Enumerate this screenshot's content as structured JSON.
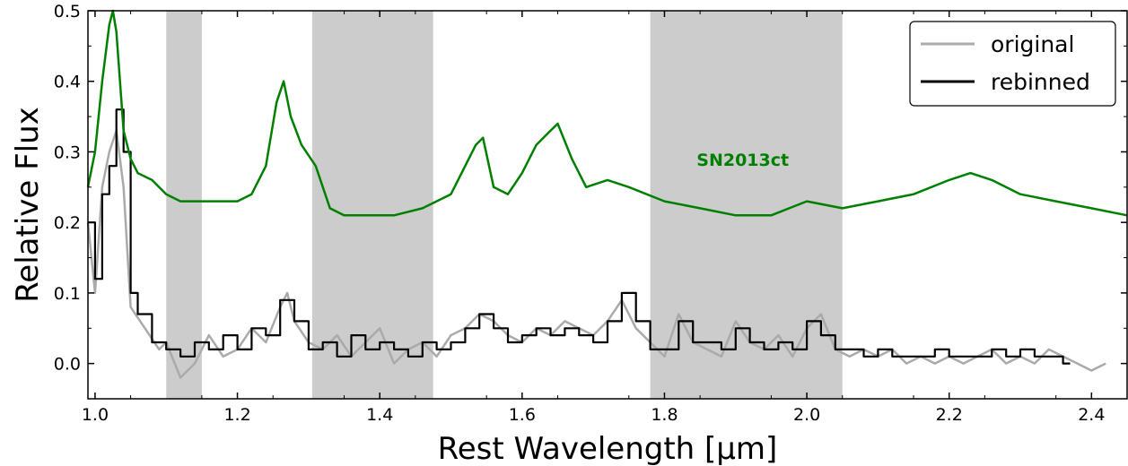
{
  "chart_data": {
    "type": "line",
    "xlabel": "Rest Wavelength [μm]",
    "ylabel": "Relative Flux",
    "xlim": [
      0.99,
      2.45
    ],
    "ylim": [
      -0.05,
      0.5
    ],
    "x_ticks": [
      1.0,
      1.2,
      1.4,
      1.6,
      1.8,
      2.0,
      2.2,
      2.4
    ],
    "y_ticks": [
      0.0,
      0.1,
      0.2,
      0.3,
      0.4,
      0.5
    ],
    "x_tick_labels": [
      "1.0",
      "1.2",
      "1.4",
      "1.6",
      "1.8",
      "2.0",
      "2.2",
      "2.4"
    ],
    "y_tick_labels": [
      "0.0",
      "0.1",
      "0.2",
      "0.3",
      "0.4",
      "0.5"
    ],
    "grid": false,
    "shaded_regions": [
      [
        1.1,
        1.15
      ],
      [
        1.305,
        1.475
      ],
      [
        1.78,
        2.05
      ]
    ],
    "legend": {
      "position": "top-right",
      "entries": [
        {
          "label": "original",
          "color": "#aaaaaa"
        },
        {
          "label": "rebinned",
          "color": "#000000"
        }
      ]
    },
    "annotations": [
      {
        "text": "SN2013ct",
        "x": 1.91,
        "y": 0.28,
        "color": "#008000"
      }
    ],
    "series": [
      {
        "name": "SN2013ct",
        "color": "#008000",
        "x": [
          0.99,
          1.0,
          1.01,
          1.02,
          1.025,
          1.03,
          1.035,
          1.04,
          1.05,
          1.06,
          1.08,
          1.1,
          1.12,
          1.15,
          1.18,
          1.2,
          1.22,
          1.24,
          1.255,
          1.265,
          1.275,
          1.29,
          1.31,
          1.33,
          1.35,
          1.38,
          1.42,
          1.46,
          1.5,
          1.52,
          1.535,
          1.545,
          1.56,
          1.58,
          1.6,
          1.62,
          1.64,
          1.65,
          1.67,
          1.69,
          1.72,
          1.75,
          1.8,
          1.85,
          1.9,
          1.95,
          2.0,
          2.05,
          2.1,
          2.15,
          2.2,
          2.23,
          2.26,
          2.3,
          2.35,
          2.4,
          2.45
        ],
        "y": [
          0.25,
          0.3,
          0.4,
          0.48,
          0.5,
          0.47,
          0.4,
          0.33,
          0.29,
          0.27,
          0.26,
          0.24,
          0.23,
          0.23,
          0.23,
          0.23,
          0.24,
          0.28,
          0.37,
          0.4,
          0.35,
          0.31,
          0.28,
          0.22,
          0.21,
          0.21,
          0.21,
          0.22,
          0.24,
          0.28,
          0.31,
          0.32,
          0.25,
          0.24,
          0.27,
          0.31,
          0.33,
          0.34,
          0.29,
          0.25,
          0.26,
          0.25,
          0.23,
          0.22,
          0.21,
          0.21,
          0.23,
          0.22,
          0.23,
          0.24,
          0.26,
          0.27,
          0.26,
          0.24,
          0.23,
          0.22,
          0.21
        ]
      },
      {
        "name": "original",
        "color": "#aaaaaa",
        "x": [
          0.99,
          1.0,
          1.01,
          1.02,
          1.03,
          1.04,
          1.05,
          1.07,
          1.09,
          1.1,
          1.12,
          1.14,
          1.16,
          1.18,
          1.2,
          1.22,
          1.24,
          1.26,
          1.27,
          1.28,
          1.3,
          1.32,
          1.34,
          1.36,
          1.38,
          1.4,
          1.42,
          1.44,
          1.46,
          1.48,
          1.5,
          1.52,
          1.54,
          1.56,
          1.58,
          1.6,
          1.62,
          1.64,
          1.66,
          1.68,
          1.7,
          1.72,
          1.74,
          1.76,
          1.78,
          1.8,
          1.82,
          1.84,
          1.88,
          1.9,
          1.92,
          1.94,
          1.96,
          1.98,
          2.0,
          2.02,
          2.04,
          2.06,
          2.08,
          2.1,
          2.12,
          2.14,
          2.16,
          2.18,
          2.2,
          2.22,
          2.24,
          2.26,
          2.28,
          2.3,
          2.32,
          2.34,
          2.36,
          2.38,
          2.4,
          2.42
        ],
        "y": [
          0.2,
          0.1,
          0.25,
          0.3,
          0.33,
          0.25,
          0.08,
          0.05,
          0.02,
          0.03,
          -0.02,
          0.0,
          0.04,
          0.01,
          0.02,
          0.05,
          0.03,
          0.08,
          0.1,
          0.06,
          0.03,
          0.02,
          0.04,
          0.01,
          0.03,
          0.05,
          0.0,
          0.02,
          0.03,
          0.01,
          0.04,
          0.05,
          0.07,
          0.06,
          0.04,
          0.03,
          0.05,
          0.04,
          0.06,
          0.05,
          0.04,
          0.06,
          0.09,
          0.05,
          0.03,
          0.01,
          0.07,
          0.03,
          0.01,
          0.06,
          0.03,
          0.02,
          0.04,
          0.01,
          0.05,
          0.07,
          0.02,
          0.01,
          0.02,
          0.01,
          0.02,
          0.0,
          0.01,
          0.0,
          0.01,
          0.0,
          0.01,
          0.02,
          0.0,
          0.01,
          0.0,
          0.02,
          0.01,
          0.0,
          -0.01,
          0.0
        ]
      },
      {
        "name": "rebinned",
        "color": "#000000",
        "x": [
          0.99,
          1.0,
          1.01,
          1.02,
          1.03,
          1.04,
          1.05,
          1.06,
          1.08,
          1.1,
          1.12,
          1.14,
          1.16,
          1.18,
          1.2,
          1.22,
          1.24,
          1.26,
          1.28,
          1.3,
          1.32,
          1.34,
          1.36,
          1.38,
          1.4,
          1.42,
          1.44,
          1.46,
          1.48,
          1.5,
          1.52,
          1.54,
          1.56,
          1.58,
          1.6,
          1.62,
          1.64,
          1.66,
          1.68,
          1.7,
          1.72,
          1.74,
          1.76,
          1.78,
          1.8,
          1.82,
          1.84,
          1.88,
          1.9,
          1.92,
          1.94,
          1.96,
          1.98,
          2.0,
          2.02,
          2.04,
          2.06,
          2.08,
          2.1,
          2.12,
          2.14,
          2.16,
          2.18,
          2.2,
          2.22,
          2.24,
          2.26,
          2.28,
          2.3,
          2.32,
          2.34,
          2.36,
          2.37
        ],
        "y": [
          0.2,
          0.12,
          0.24,
          0.28,
          0.36,
          0.3,
          0.1,
          0.07,
          0.03,
          0.02,
          0.01,
          0.03,
          0.02,
          0.04,
          0.02,
          0.05,
          0.04,
          0.09,
          0.06,
          0.02,
          0.03,
          0.01,
          0.04,
          0.02,
          0.03,
          0.02,
          0.01,
          0.03,
          0.02,
          0.03,
          0.05,
          0.07,
          0.05,
          0.03,
          0.04,
          0.05,
          0.04,
          0.05,
          0.04,
          0.03,
          0.06,
          0.1,
          0.06,
          0.02,
          0.02,
          0.06,
          0.03,
          0.02,
          0.05,
          0.03,
          0.02,
          0.03,
          0.02,
          0.06,
          0.04,
          0.02,
          0.02,
          0.01,
          0.02,
          0.01,
          0.01,
          0.01,
          0.02,
          0.01,
          0.01,
          0.01,
          0.02,
          0.01,
          0.02,
          0.01,
          0.01,
          0.0,
          0.0
        ]
      }
    ]
  }
}
